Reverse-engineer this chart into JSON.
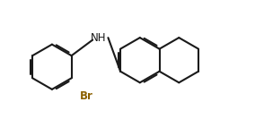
{
  "background": "#ffffff",
  "bond_color": "#1a1a1a",
  "Br_color": "#8b6000",
  "NH_color": "#1a1a1a",
  "lw": 1.5,
  "figsize": [
    2.84,
    1.52
  ],
  "dpi": 100,
  "xlim": [
    -0.5,
    10.5
  ],
  "ylim": [
    -0.5,
    5.5
  ]
}
